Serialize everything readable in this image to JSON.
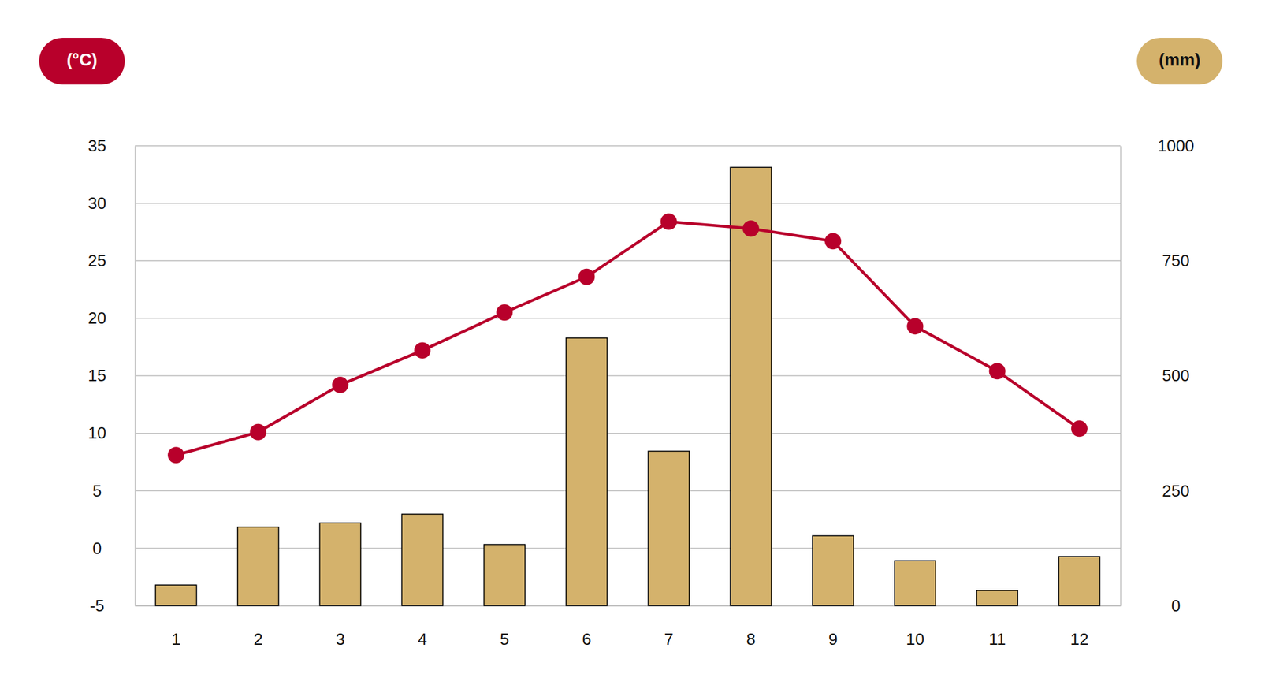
{
  "chart_data": {
    "type": "bar",
    "ylabel": "(°C)",
    "y2label": "(mm)",
    "categories": [
      "1",
      "2",
      "3",
      "4",
      "5",
      "6",
      "7",
      "8",
      "9",
      "10",
      "11",
      "12"
    ],
    "ylim": [
      -5,
      35
    ],
    "yticks": [
      -5,
      0,
      5,
      10,
      15,
      20,
      25,
      30,
      35
    ],
    "y2lim": [
      0,
      1000
    ],
    "y2ticks": [
      0,
      250,
      500,
      750,
      1000
    ],
    "grid": true,
    "series": [
      {
        "type": "bar",
        "axis": "y2",
        "color": "#d4b26c",
        "values": [
          45,
          171,
          180,
          199,
          133,
          582,
          336,
          953,
          152,
          98,
          33,
          107
        ]
      },
      {
        "type": "line",
        "color": "#b8002b",
        "marker": "circle",
        "values": [
          8.1,
          10.1,
          14.2,
          17.2,
          20.5,
          23.6,
          28.4,
          27.8,
          26.7,
          19.3,
          15.4,
          10.4
        ]
      }
    ]
  }
}
